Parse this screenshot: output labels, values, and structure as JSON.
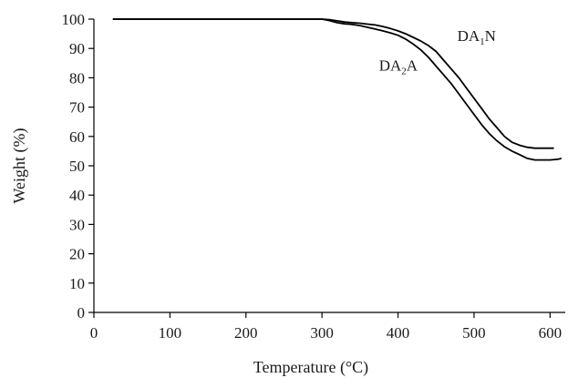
{
  "chart_data": {
    "type": "line",
    "xlabel": "Temperature (°C)",
    "ylabel": "Weight (%)",
    "xlim": [
      0,
      620
    ],
    "ylim": [
      0,
      100
    ],
    "xticks": [
      0,
      100,
      200,
      300,
      400,
      500,
      600
    ],
    "yticks": [
      0,
      10,
      20,
      30,
      40,
      50,
      60,
      70,
      80,
      90,
      100
    ],
    "grid": false,
    "legend": "none",
    "series": [
      {
        "name": "DA1N",
        "label_main": "DA",
        "label_sub": "1",
        "label_tail": "N",
        "x": [
          25,
          100,
          200,
          300,
          310,
          320,
          330,
          340,
          350,
          360,
          370,
          380,
          390,
          400,
          410,
          420,
          430,
          440,
          450,
          460,
          470,
          480,
          490,
          500,
          510,
          520,
          530,
          540,
          550,
          560,
          570,
          580,
          590,
          600,
          605
        ],
        "y": [
          100,
          100,
          100,
          100,
          99.8,
          99.4,
          99,
          98.8,
          98.6,
          98.3,
          98,
          97.5,
          96.8,
          96,
          95,
          93.8,
          92.5,
          91,
          89,
          86,
          83,
          80,
          76.5,
          73,
          69.5,
          66,
          63,
          60,
          58,
          57,
          56.3,
          56,
          56,
          56,
          56
        ]
      },
      {
        "name": "DA2A",
        "label_main": "DA",
        "label_sub": "2",
        "label_tail": "A",
        "x": [
          25,
          100,
          200,
          300,
          310,
          320,
          330,
          340,
          350,
          360,
          370,
          380,
          390,
          400,
          410,
          420,
          430,
          440,
          450,
          460,
          470,
          480,
          490,
          500,
          510,
          520,
          530,
          540,
          550,
          560,
          570,
          580,
          590,
          600,
          610,
          615
        ],
        "y": [
          100,
          100,
          100,
          100,
          99.5,
          98.8,
          98.4,
          98.2,
          97.8,
          97.2,
          96.6,
          96,
          95.3,
          94.5,
          93.2,
          91.5,
          89.5,
          87,
          84,
          81,
          78,
          74.5,
          71,
          67.5,
          64,
          61,
          58.5,
          56.5,
          55,
          53.8,
          52.5,
          52,
          52,
          52,
          52.2,
          52.5
        ]
      }
    ]
  }
}
